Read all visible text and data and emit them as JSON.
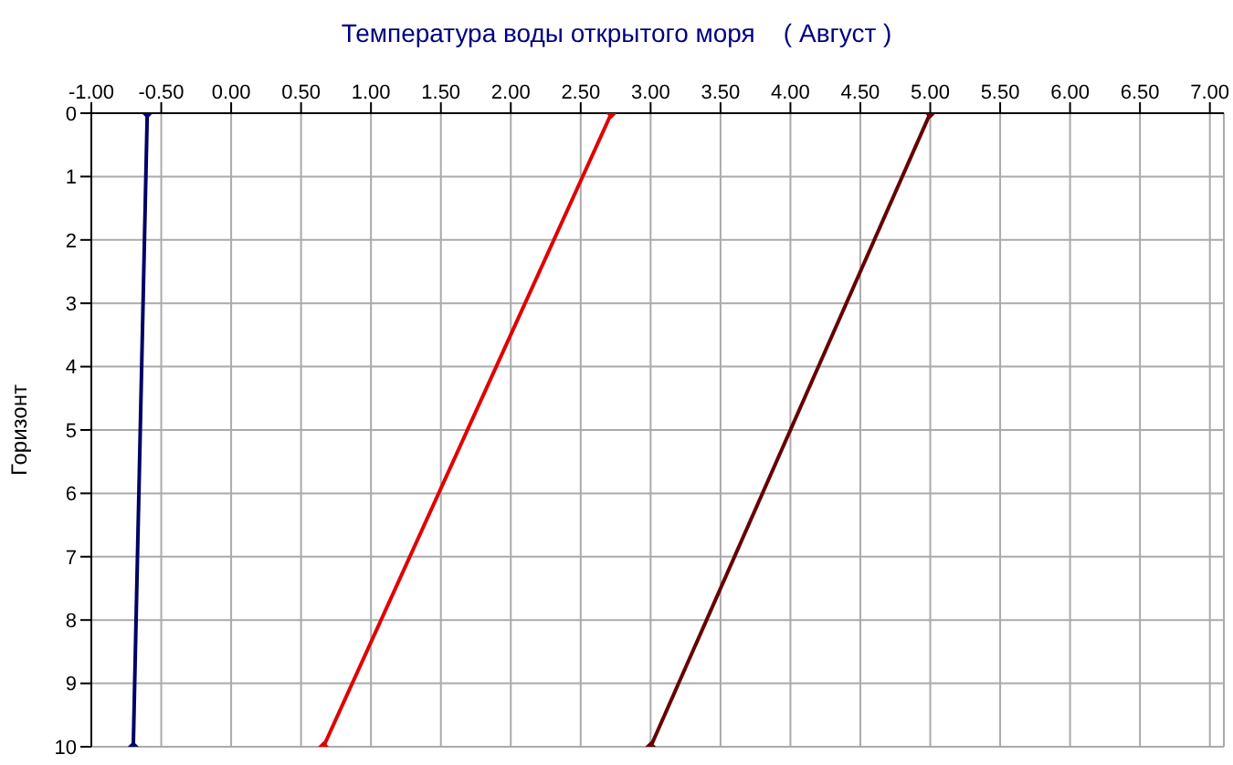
{
  "chart_data": {
    "type": "line",
    "title": "Температура воды открытого моря    ( Август )",
    "ylabel": "Горизонт",
    "series": [
      {
        "color": "#000066",
        "x": [
          -0.6,
          -0.7
        ],
        "values": [
          0,
          10
        ]
      },
      {
        "color": "#e00000",
        "x": [
          2.72,
          0.66
        ],
        "values": [
          0,
          10
        ]
      },
      {
        "color": "#660000",
        "x": [
          5.0,
          3.0
        ],
        "values": [
          0,
          10
        ]
      }
    ],
    "xlim": [
      -1,
      7.1
    ],
    "xticks": [
      {
        "value": -1,
        "label": "-1.00"
      },
      {
        "value": -0.5,
        "label": "-0.50"
      },
      {
        "value": 0,
        "label": "0.00"
      },
      {
        "value": 0.5,
        "label": "0.50"
      },
      {
        "value": 1,
        "label": "1.00"
      },
      {
        "value": 1.5,
        "label": "1.50"
      },
      {
        "value": 2,
        "label": "2.00"
      },
      {
        "value": 2.5,
        "label": "2.50"
      },
      {
        "value": 3,
        "label": "3.00"
      },
      {
        "value": 3.5,
        "label": "3.50"
      },
      {
        "value": 4,
        "label": "4.00"
      },
      {
        "value": 4.5,
        "label": "4.50"
      },
      {
        "value": 5,
        "label": "5.00"
      },
      {
        "value": 5.5,
        "label": "5.50"
      },
      {
        "value": 6,
        "label": "6.00"
      },
      {
        "value": 6.5,
        "label": "6.50"
      },
      {
        "value": 7,
        "label": "7.00"
      }
    ],
    "ylim": [
      10,
      0
    ],
    "yticks": [
      0,
      1,
      2,
      3,
      4,
      5,
      6,
      7,
      8,
      9,
      10
    ],
    "grid": true,
    "marker": "diamond",
    "line_style": "solid"
  }
}
